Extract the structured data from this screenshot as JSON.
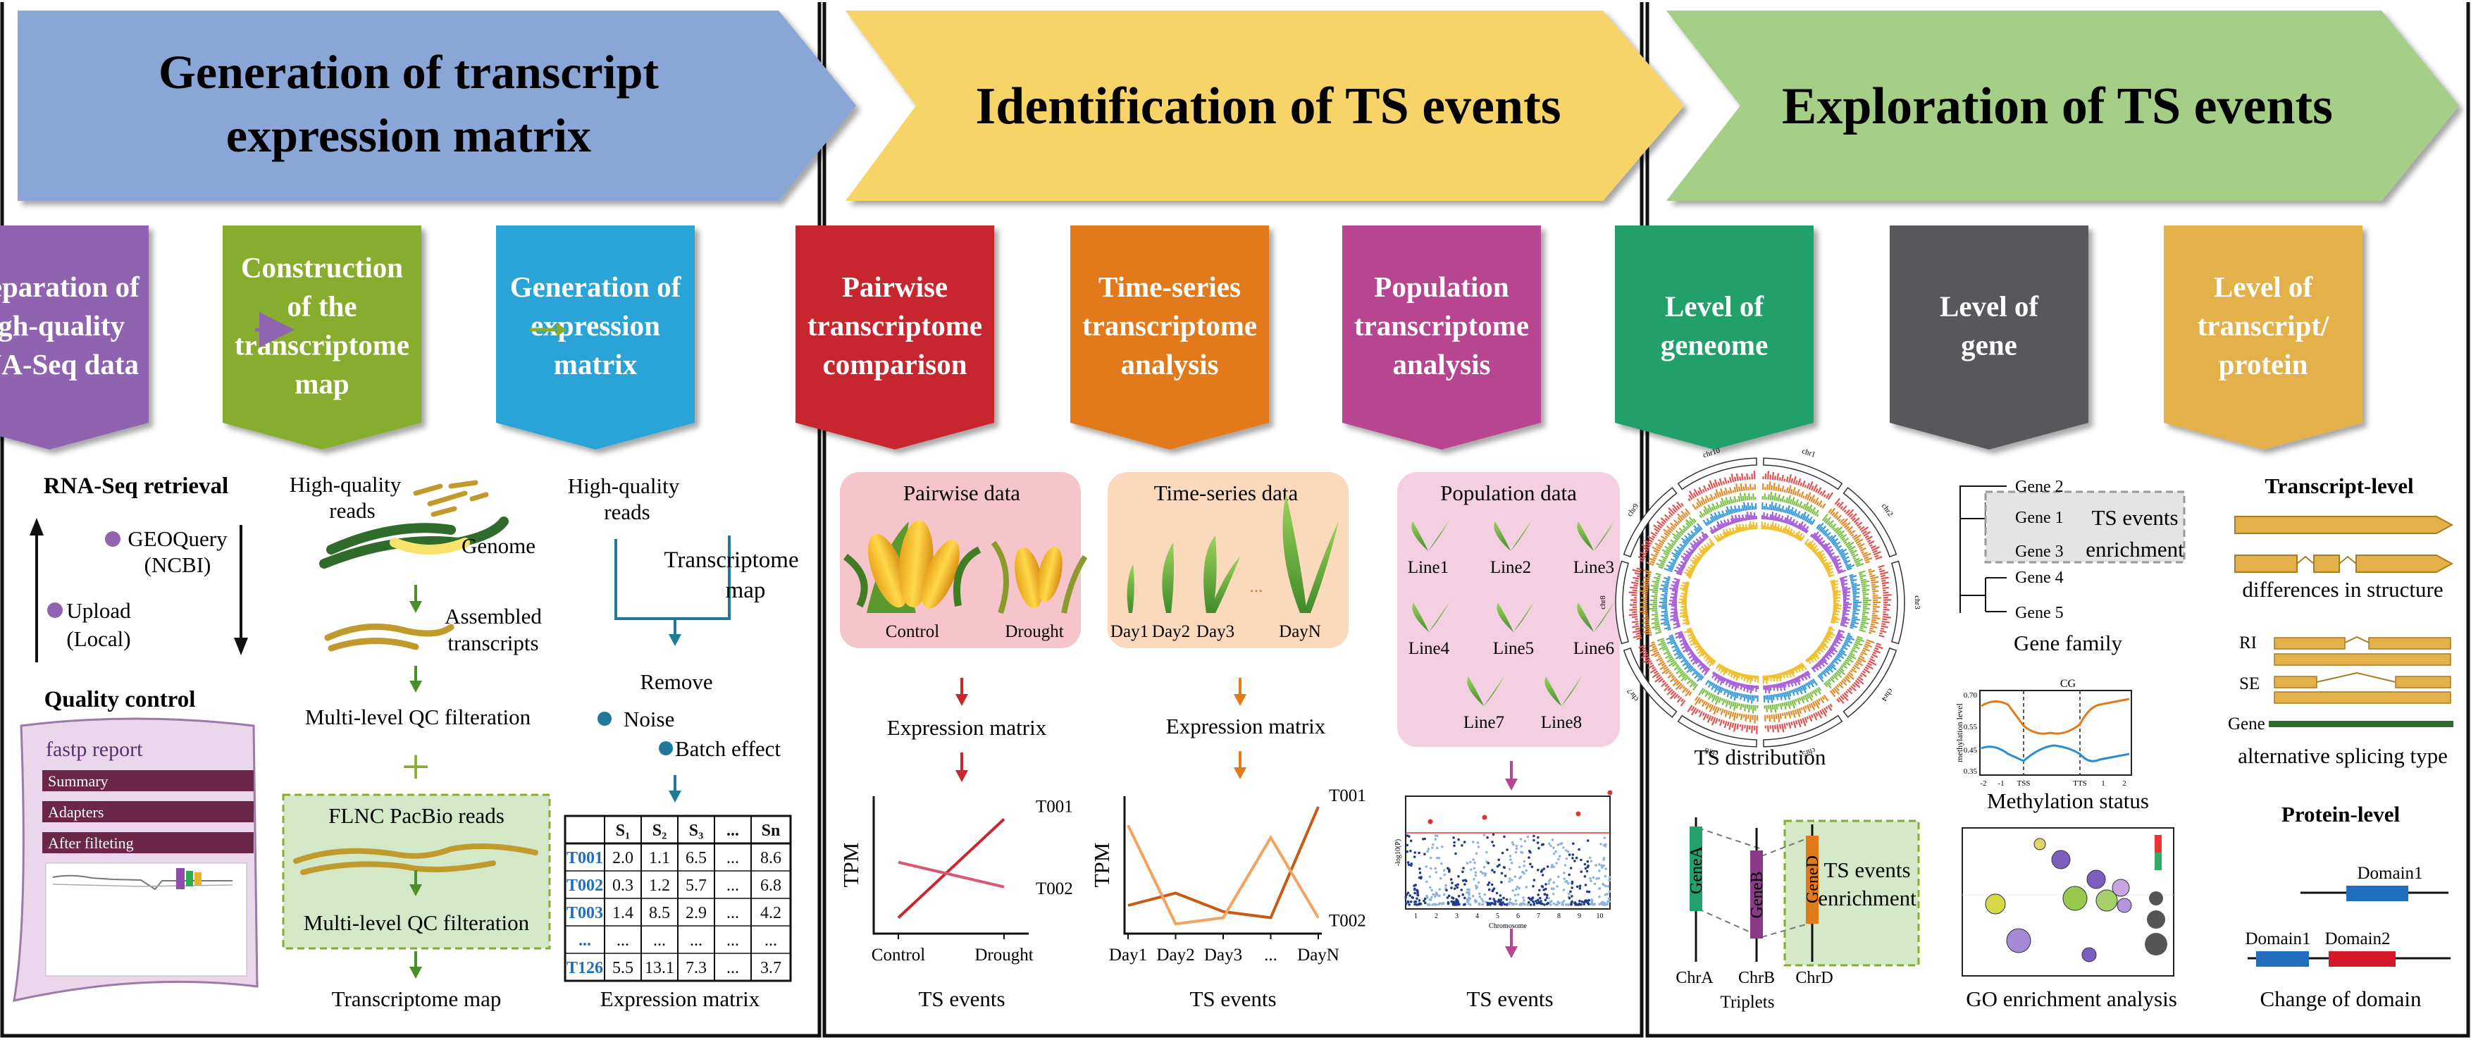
{
  "colors": {
    "banner1": "#8aa6d6",
    "banner2": "#f6d468",
    "banner3": "#a5ce86",
    "prep": "#8f64b0",
    "construct": "#86ad2e",
    "genmatrix": "#2aa3d7",
    "pairwise": "#c8272e",
    "timeseries": "#e27a1b",
    "population": "#b8458f",
    "genome": "#23a06c",
    "gene": "#59595b",
    "transcript": "#e4b04a"
  },
  "banners": {
    "b1": "Generation of transcript expression matrix",
    "b1_line1": "Generation of transcript",
    "b1_line2": "expression matrix",
    "b2": "Identification of TS events",
    "b3": "Exploration of TS events"
  },
  "headers": {
    "prep": [
      "Preparation of",
      "high-quality",
      "RNA-Seq data"
    ],
    "construct": [
      "Construction",
      "of the",
      "transcriptome",
      "map"
    ],
    "genmatrix": [
      "Generation of",
      "expression",
      "matrix"
    ],
    "pairwise": [
      "Pairwise",
      "transcriptome",
      "comparison"
    ],
    "timeseries": [
      "Time-series",
      "transcriptome",
      "analysis"
    ],
    "population": [
      "Population",
      "transcriptome",
      "analysis"
    ],
    "genome": [
      "Level of",
      "geneome"
    ],
    "gene": [
      "Level of",
      "gene"
    ],
    "transcript": [
      "Level of",
      "transcript/",
      "protein"
    ]
  },
  "prep": {
    "retrieval": "RNA-Seq retrieval",
    "geoquery": "GEOQuery",
    "ncbi": "(NCBI)",
    "upload": "Upload",
    "local": "(Local)",
    "qc": "Quality control",
    "report_title": "fastp report",
    "report_rows": [
      "Summary",
      "Adapters",
      "After filteting"
    ]
  },
  "construct": {
    "hq_reads_1": "High-quality",
    "hq_reads_2": "reads",
    "genome": "Genome",
    "assembled_1": "Assembled",
    "assembled_2": "transcripts",
    "qc1": "Multi-level QC filteration",
    "plus": "+",
    "flnc": "FLNC PacBio reads",
    "qc2": "Multi-level QC filteration",
    "map": "Transcriptome map"
  },
  "genmatrix": {
    "hq_reads_1": "High-quality",
    "hq_reads_2": "reads",
    "tmap_1": "Transcriptome",
    "tmap_2": "map",
    "remove": "Remove",
    "noise": "Noise",
    "batch": "Batch effect",
    "caption": "Expression matrix",
    "table_header": [
      "",
      "S₁",
      "S₂",
      "S₃",
      "...",
      "Sn"
    ],
    "table_rows": [
      [
        "T001",
        "2.0",
        "1.1",
        "6.5",
        "...",
        "8.6"
      ],
      [
        "T002",
        "0.3",
        "1.2",
        "5.7",
        "...",
        "6.8"
      ],
      [
        "T003",
        "1.4",
        "8.5",
        "2.9",
        "...",
        "4.2"
      ],
      [
        "...",
        "...",
        "...",
        "...",
        "...",
        "..."
      ],
      [
        "T126",
        "5.5",
        "13.1",
        "7.3",
        "...",
        "3.7"
      ]
    ]
  },
  "pairwise": {
    "data_title": "Pairwise data",
    "control": "Control",
    "drought": "Drought",
    "matrix": "Expression matrix",
    "ylabel": "TPM",
    "x_labels": [
      "Control",
      "Drought"
    ],
    "series": [
      {
        "name": "T001",
        "values": [
          0.1,
          0.9
        ]
      },
      {
        "name": "T002",
        "values": [
          0.55,
          0.35
        ]
      }
    ],
    "events": "TS events"
  },
  "timeseries": {
    "data_title": "Time-series data",
    "days": [
      "Day1",
      "Day2",
      "Day3",
      "...",
      "DayN"
    ],
    "matrix": "Expression matrix",
    "ylabel": "TPM",
    "x_labels": [
      "Day1",
      "Day2",
      "Day3",
      "...",
      "DayN"
    ],
    "series": [
      {
        "name": "T001",
        "values": [
          0.2,
          0.3,
          0.15,
          0.1,
          1.0
        ]
      },
      {
        "name": "T002",
        "values": [
          0.85,
          0.05,
          0.1,
          0.75,
          0.1
        ]
      }
    ],
    "events": "TS events"
  },
  "population": {
    "data_title": "Population data",
    "lines": [
      "Line1",
      "Line2",
      "Line3",
      "Line4",
      "Line5",
      "Line6",
      "Line7",
      "Line8"
    ],
    "manhattan_xlabel": "Chromosome",
    "manhattan_ylabel": "-log10(P)",
    "manhattan_ticks": [
      "1",
      "2",
      "3",
      "4",
      "5",
      "6",
      "7",
      "8",
      "9",
      "10"
    ],
    "events": "TS events"
  },
  "genome": {
    "circos_chromosomes": [
      "chr1",
      "chr2",
      "chr3",
      "chr4",
      "chr5",
      "chr6",
      "chr7",
      "chr8",
      "chr9",
      "chr10"
    ],
    "ts_distribution": "TS distribution",
    "genes": [
      "GeneA",
      "GeneB",
      "GeneD"
    ],
    "chrs": [
      "ChrA",
      "ChrB",
      "ChrD"
    ],
    "triplets": "Triplets",
    "enrichment_1": "TS events",
    "enrichment_2": "enrichment"
  },
  "gene": {
    "genes": [
      "Gene 2",
      "Gene 1",
      "Gene 3",
      "Gene 4",
      "Gene 5"
    ],
    "enrichment_1": "TS events",
    "enrichment_2": "enrichment",
    "family": "Gene family",
    "meth_title": "CG",
    "meth_ylabel": "methylation level",
    "meth_ticks": [
      "-2",
      "-1",
      "TSS",
      "TTS",
      "1",
      "2"
    ],
    "meth_yticks": [
      "0.70",
      "0.55",
      "0.45",
      "0.35"
    ],
    "methylation": "Methylation status",
    "go": "GO enrichment analysis"
  },
  "transcript": {
    "transcript_level": "Transcript-level",
    "structure": "differences in structure",
    "ri": "RI",
    "se": "SE",
    "gene": "Gene",
    "splicing": "alternative splicing type",
    "protein_level": "Protein-level",
    "domain1": "Domain1",
    "domain1b": "Domain1",
    "domain2": "Domain2",
    "change": "Change of domain"
  }
}
